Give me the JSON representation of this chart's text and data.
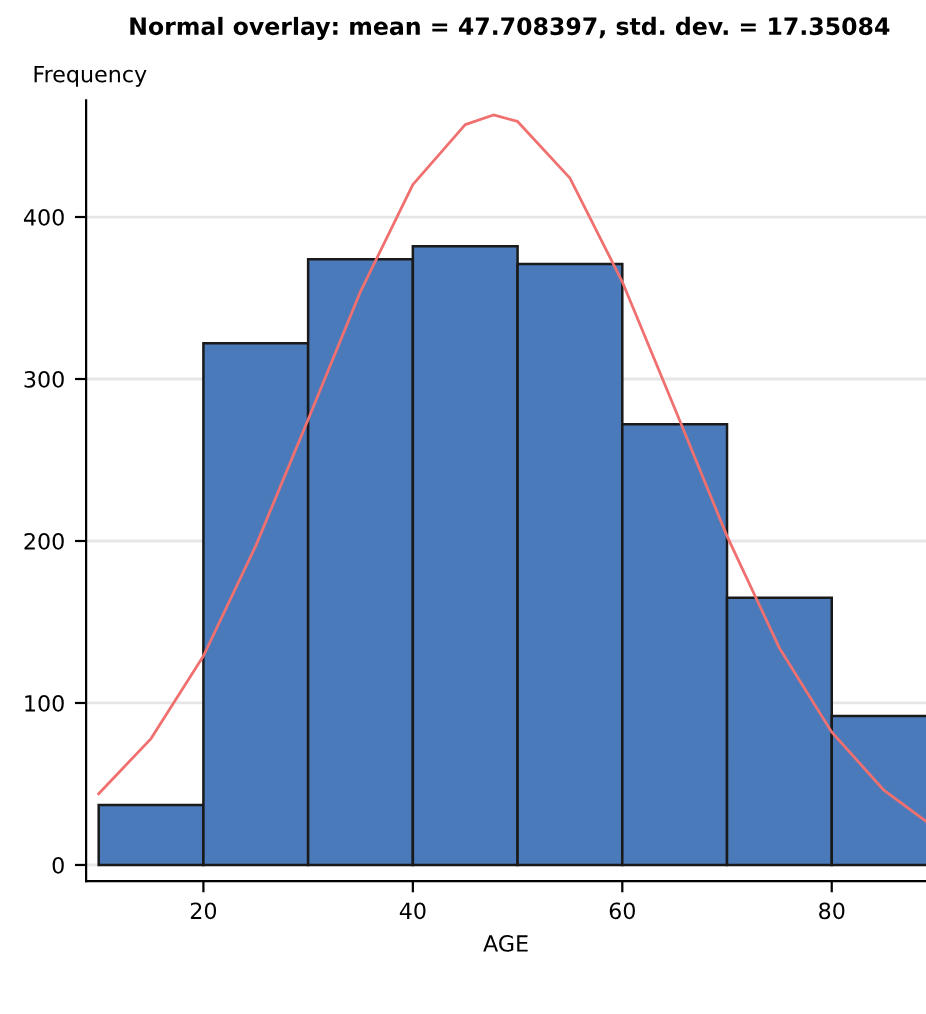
{
  "chart_data": {
    "type": "histogram",
    "title": "Normal overlay: mean = 47.708397, std. dev. = 17.35084",
    "xlabel": "AGE",
    "ylabel": "Frequency",
    "series": [
      {
        "bins": [
          10,
          20,
          30,
          40,
          50,
          60,
          70,
          80,
          90
        ],
        "values": [
          37,
          322,
          374,
          382,
          371,
          272,
          165,
          92
        ],
        "color": "#4a7aba"
      },
      {
        "type": "line",
        "x": [
          10,
          15,
          20,
          25,
          30,
          35,
          40,
          45,
          47.7,
          50,
          55,
          60,
          65,
          70,
          75,
          80,
          85,
          89
        ],
        "values": [
          44,
          78,
          129,
          197,
          275,
          354,
          420,
          457,
          463,
          459,
          424,
          360,
          282,
          203,
          134,
          82,
          46,
          27
        ],
        "color": "#f07070"
      }
    ],
    "xlim": [
      8.8,
      89
    ],
    "xticks": [
      20,
      40,
      60,
      80
    ],
    "ylim": [
      -10,
      472
    ],
    "yticks": [
      0,
      100,
      200,
      300,
      400
    ],
    "grid": "y"
  }
}
